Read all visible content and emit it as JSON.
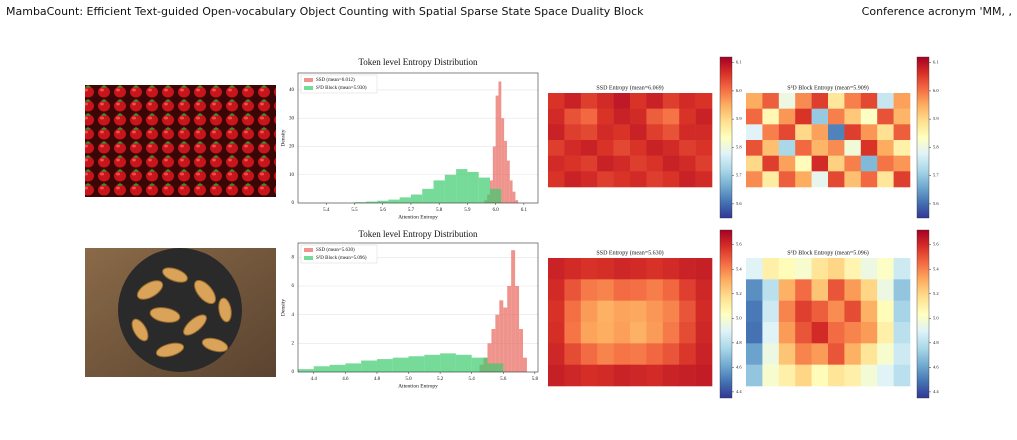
{
  "header": {
    "title": "MambaCount: Efficient Text-guided Open-vocabulary Object Counting with Spatial Sparse State Space Duality Block",
    "venue": "Conference acronym 'MM, ,"
  },
  "chart_data": [
    {
      "type": "histogram",
      "title": "Token level Entropy Distribution",
      "x_label": "Attention Entropy",
      "y_label": "Density",
      "xlim": [
        5.3,
        6.15
      ],
      "xticks": [
        5.4,
        5.5,
        5.6,
        5.7,
        5.8,
        5.9,
        {
          "value": 6,
          "label": "6.0"
        },
        6.1
      ],
      "ylim": [
        0,
        46
      ],
      "yticks": [
        0,
        10,
        20,
        30,
        40
      ],
      "grid": true,
      "legend": "upper-left",
      "series": [
        {
          "name": "SSD (mean=6.012)",
          "color": "#e8675c",
          "bins": [
            5.96,
            5.97,
            5.98,
            5.99,
            6.0,
            6.01,
            6.02,
            6.03,
            6.04,
            6.05,
            6.06,
            6.07,
            6.08
          ],
          "values": [
            1,
            3,
            8,
            20,
            38,
            43,
            30,
            22,
            15,
            8,
            4,
            1
          ]
        },
        {
          "name": "S³D Block (mean=5.930)",
          "color": "#3ccb6e",
          "bins": [
            5.5,
            5.54,
            5.58,
            5.62,
            5.66,
            5.7,
            5.74,
            5.78,
            5.82,
            5.86,
            5.9,
            5.94,
            5.98,
            6.02
          ],
          "values": [
            0.3,
            0.5,
            0.8,
            1.2,
            2,
            3,
            5,
            8,
            10,
            12,
            11,
            9,
            5
          ]
        }
      ]
    },
    {
      "type": "heatmap",
      "title": "SSD Entropy (mean=6.069)",
      "colormap": "RdYlBu_r",
      "clim": [
        5.55,
        6.12
      ],
      "cticks": [
        5.6,
        5.7,
        5.8,
        5.9,
        {
          "value": 6,
          "label": "6.0"
        },
        6.1
      ],
      "z": [
        [
          6.06,
          6.08,
          6.05,
          6.07,
          6.09,
          6.06,
          6.08,
          6.05,
          6.07,
          6.06
        ],
        [
          6.07,
          6.03,
          6.01,
          6.06,
          6.08,
          6.07,
          6.02,
          6.0,
          6.06,
          6.08
        ],
        [
          6.08,
          6.05,
          6.04,
          6.07,
          6.06,
          6.08,
          6.05,
          6.03,
          6.07,
          6.07
        ],
        [
          6.05,
          6.07,
          6.08,
          6.06,
          6.04,
          6.06,
          6.08,
          6.07,
          6.05,
          6.06
        ],
        [
          6.07,
          6.06,
          6.05,
          6.08,
          6.07,
          6.05,
          6.06,
          6.08,
          6.07,
          6.05
        ],
        [
          6.06,
          6.08,
          6.07,
          6.05,
          6.06,
          6.07,
          6.05,
          6.06,
          6.08,
          6.07
        ]
      ]
    },
    {
      "type": "heatmap",
      "title": "S³D Block Entropy (mean=5.909)",
      "colormap": "RdYlBu_r",
      "clim": [
        5.55,
        6.12
      ],
      "cticks": [
        5.6,
        5.7,
        5.8,
        5.9,
        {
          "value": 6,
          "label": "6.0"
        },
        6.1
      ],
      "z": [
        [
          5.95,
          6.02,
          5.8,
          5.98,
          6.05,
          5.88,
          5.99,
          6.04,
          5.75,
          5.96
        ],
        [
          6.01,
          5.85,
          5.97,
          6.06,
          5.7,
          5.99,
          5.92,
          5.83,
          6.03,
          5.94
        ],
        [
          5.78,
          5.99,
          6.04,
          5.9,
          5.96,
          5.62,
          6.05,
          5.97,
          5.89,
          6.02
        ],
        [
          6.03,
          5.93,
          5.72,
          6.01,
          5.94,
          5.98,
          5.81,
          6.06,
          5.95,
          5.86
        ],
        [
          5.9,
          6.05,
          5.96,
          5.84,
          6.07,
          5.91,
          5.99,
          5.68,
          6.0,
          5.97
        ],
        [
          5.98,
          5.87,
          6.02,
          5.95,
          5.79,
          6.04,
          5.93,
          6.01,
          5.88,
          6.05
        ]
      ]
    },
    {
      "type": "histogram",
      "title": "Token level Entropy Distribution",
      "x_label": "Attention Entropy",
      "y_label": "Density",
      "xlim": [
        4.3,
        5.82
      ],
      "xticks": [
        4.4,
        4.6,
        4.8,
        {
          "value": 5,
          "label": "5.0"
        },
        5.2,
        5.4,
        5.6,
        5.8
      ],
      "ylim": [
        0,
        9
      ],
      "yticks": [
        0,
        2,
        4,
        6,
        8
      ],
      "grid": true,
      "legend": "upper-left",
      "series": [
        {
          "name": "SSD (mean=5.630)",
          "color": "#e8675c",
          "bins": [
            5.45,
            5.475,
            5.5,
            5.525,
            5.55,
            5.575,
            5.6,
            5.625,
            5.65,
            5.675,
            5.7,
            5.725,
            5.75
          ],
          "values": [
            0.5,
            1,
            2,
            3,
            4,
            5,
            4.5,
            6,
            8.5,
            6,
            3,
            1
          ]
        },
        {
          "name": "S³D Block (mean=5.096)",
          "color": "#3ccb6e",
          "bins": [
            4.3,
            4.4,
            4.5,
            4.6,
            4.7,
            4.8,
            4.9,
            5.0,
            5.1,
            5.2,
            5.3,
            5.4,
            5.5,
            5.6
          ],
          "values": [
            0.2,
            0.4,
            0.5,
            0.6,
            0.8,
            0.9,
            1,
            1.1,
            1.2,
            1.3,
            1.2,
            1,
            0.6
          ]
        }
      ]
    },
    {
      "type": "heatmap",
      "title": "SSD Entropy (mean=5.630)",
      "colormap": "RdYlBu_r",
      "clim": [
        4.35,
        5.72
      ],
      "cticks": [
        4.4,
        4.6,
        4.8,
        {
          "value": 5,
          "label": "5.0"
        },
        5.2,
        5.4,
        5.6
      ],
      "z": [
        [
          5.62,
          5.6,
          5.58,
          5.59,
          5.61,
          5.6,
          5.58,
          5.6,
          5.62,
          5.63
        ],
        [
          5.6,
          5.5,
          5.42,
          5.4,
          5.45,
          5.44,
          5.41,
          5.46,
          5.55,
          5.61
        ],
        [
          5.58,
          5.44,
          5.35,
          5.3,
          5.33,
          5.32,
          5.36,
          5.4,
          5.5,
          5.6
        ],
        [
          5.59,
          5.43,
          5.33,
          5.31,
          5.34,
          5.3,
          5.35,
          5.42,
          5.52,
          5.61
        ],
        [
          5.61,
          5.52,
          5.45,
          5.4,
          5.43,
          5.42,
          5.46,
          5.5,
          5.57,
          5.62
        ],
        [
          5.63,
          5.61,
          5.59,
          5.6,
          5.62,
          5.61,
          5.6,
          5.62,
          5.63,
          5.64
        ]
      ]
    },
    {
      "type": "heatmap",
      "title": "S³D Block Entropy (mean=5.096)",
      "colormap": "RdYlBu_r",
      "clim": [
        4.35,
        5.72
      ],
      "cticks": [
        4.4,
        4.6,
        4.8,
        {
          "value": 5,
          "label": "5.0"
        },
        5.2,
        5.4,
        5.6
      ],
      "z": [
        [
          4.9,
          5.1,
          5.05,
          5.0,
          5.15,
          5.2,
          5.08,
          4.95,
          5.02,
          4.85
        ],
        [
          4.55,
          4.8,
          5.3,
          5.45,
          5.25,
          5.5,
          5.35,
          5.2,
          4.95,
          4.7
        ],
        [
          4.5,
          4.85,
          5.4,
          5.55,
          5.48,
          5.38,
          5.52,
          5.3,
          5.05,
          4.75
        ],
        [
          4.48,
          4.9,
          5.35,
          5.5,
          5.6,
          5.45,
          5.4,
          5.35,
          5.1,
          4.8
        ],
        [
          4.6,
          4.95,
          5.25,
          5.4,
          5.35,
          5.5,
          5.3,
          5.15,
          5.0,
          4.85
        ],
        [
          4.7,
          5.0,
          5.1,
          5.2,
          5.05,
          5.15,
          5.1,
          4.98,
          4.9,
          4.8
        ]
      ]
    }
  ]
}
